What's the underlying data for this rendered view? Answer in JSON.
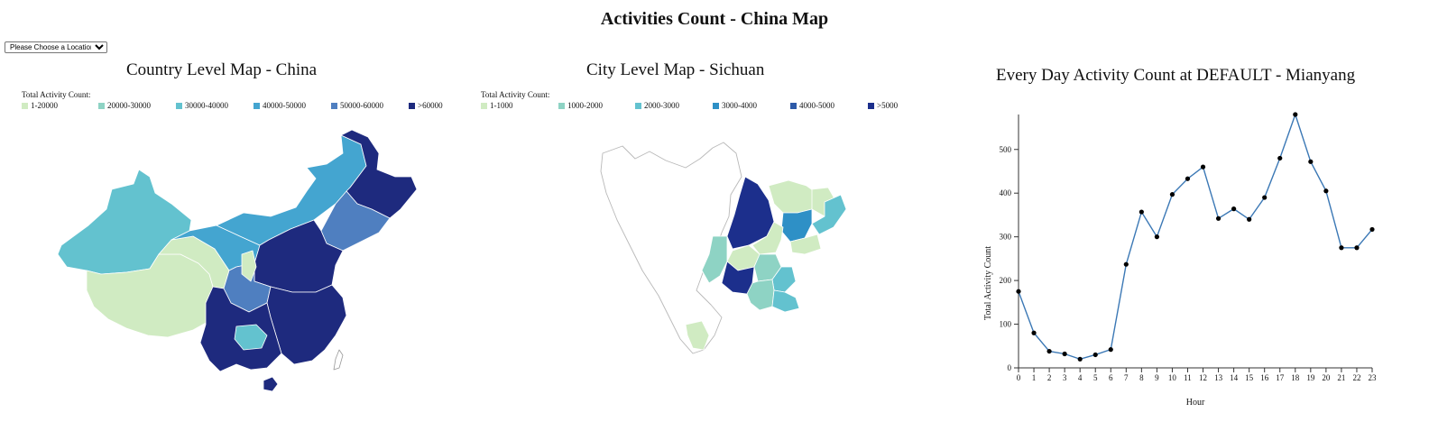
{
  "page": {
    "title": "Activities Count - China Map"
  },
  "location_select": {
    "selected": "Please Choose a Location:"
  },
  "country_map": {
    "title": "Country Level Map - China",
    "legend_title": "Total Activity Count:",
    "legend": [
      {
        "label": "1-20000",
        "color": "#d0ebc2"
      },
      {
        "label": "20000-30000",
        "color": "#8ed3c4"
      },
      {
        "label": "30000-40000",
        "color": "#63c2cf"
      },
      {
        "label": "40000-50000",
        "color": "#44a5d0"
      },
      {
        "label": "50000-60000",
        "color": "#4f7fc0"
      },
      {
        "label": ">60000",
        "color": "#1e2a7e"
      }
    ]
  },
  "city_map": {
    "title": "City Level Map - Sichuan",
    "legend_title": "Total Activity Count:",
    "legend": [
      {
        "label": "1-1000",
        "color": "#d0ebc2"
      },
      {
        "label": "1000-2000",
        "color": "#8ed3c4"
      },
      {
        "label": "2000-3000",
        "color": "#63c2cf"
      },
      {
        "label": "3000-4000",
        "color": "#2e90c6"
      },
      {
        "label": "4000-5000",
        "color": "#2d5aa8"
      },
      {
        "label": ">5000",
        "color": "#1c2f8c"
      }
    ]
  },
  "chart_data": {
    "type": "line",
    "title": "Every Day Activity Count at DEFAULT - Mianyang",
    "xlabel": "Hour",
    "ylabel": "Total Activity Count",
    "x": [
      0,
      1,
      2,
      3,
      4,
      5,
      6,
      7,
      8,
      9,
      10,
      11,
      12,
      13,
      14,
      15,
      16,
      17,
      18,
      19,
      20,
      21,
      22,
      23
    ],
    "values": [
      175,
      80,
      38,
      32,
      20,
      30,
      42,
      237,
      357,
      300,
      397,
      433,
      460,
      342,
      364,
      340,
      390,
      480,
      580,
      472,
      405,
      275,
      275,
      317
    ],
    "xlim": [
      0,
      23
    ],
    "ylim": [
      0,
      580
    ],
    "yticks": [
      0,
      100,
      200,
      300,
      400,
      500
    ],
    "line_color": "#3b78b5",
    "point_color": "#000000"
  }
}
